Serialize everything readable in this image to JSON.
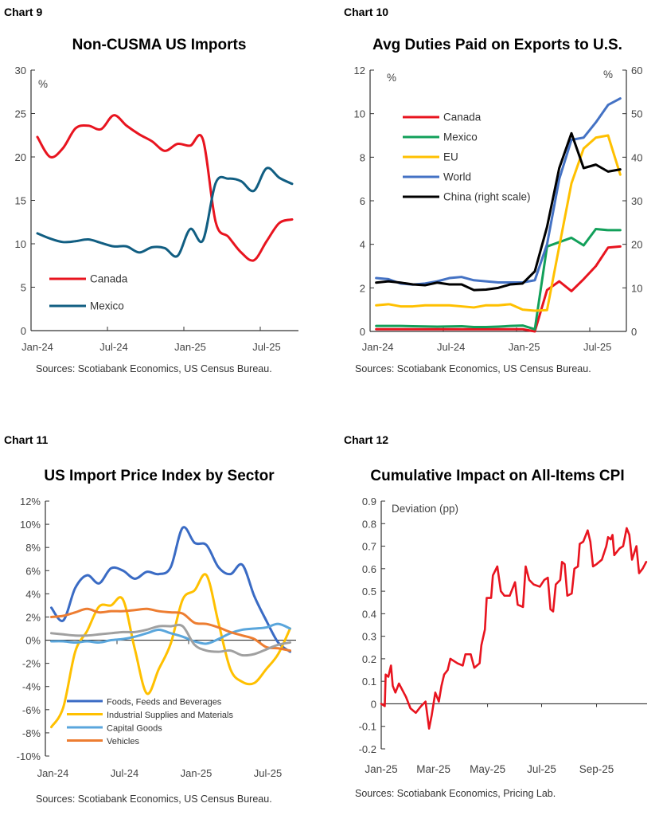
{
  "chart_data": [
    {
      "label": "Chart 9",
      "type": "line",
      "title": "Non-CUSMA US Imports",
      "unit_label": "%",
      "source": "Sources: Scotiabank Economics, US Census Bureau.",
      "x": [
        "Jan-24",
        "Feb-24",
        "Mar-24",
        "Apr-24",
        "May-24",
        "Jun-24",
        "Jul-24",
        "Aug-24",
        "Sep-24",
        "Oct-24",
        "Nov-24",
        "Dec-24",
        "Jan-25",
        "Feb-25",
        "Mar-25",
        "Apr-25",
        "May-25",
        "Jun-25",
        "Jul-25",
        "Aug-25",
        "Sep-25"
      ],
      "xticks": [
        "Jan-24",
        "Jul-24",
        "Jan-25",
        "Jul-25"
      ],
      "ylim": [
        0,
        30
      ],
      "yticks": [
        0,
        5,
        10,
        15,
        20,
        25,
        30
      ],
      "grid": false,
      "legend": "bottom-left",
      "series": [
        {
          "name": "Canada",
          "color": "#e8141f",
          "values": [
            22.3,
            20.0,
            21.0,
            23.3,
            23.6,
            23.2,
            24.8,
            23.6,
            22.6,
            21.8,
            20.7,
            21.5,
            21.3,
            22.0,
            12.5,
            10.8,
            9.0,
            8.1,
            10.3,
            12.4,
            12.8
          ]
        },
        {
          "name": "Mexico",
          "color": "#115e82",
          "values": [
            11.2,
            10.6,
            10.2,
            10.3,
            10.5,
            10.1,
            9.7,
            9.7,
            9.0,
            9.6,
            9.5,
            8.6,
            11.7,
            10.4,
            17.0,
            17.5,
            17.2,
            16.1,
            18.7,
            17.6,
            16.9
          ]
        }
      ]
    },
    {
      "label": "Chart 10",
      "type": "line",
      "title": "Avg Duties Paid on Exports to U.S.",
      "unit_label": "%",
      "unit_label_right": "%",
      "source": "Sources: Scotiabank Economics, US Census Bureau.",
      "x": [
        "Jan-24",
        "Feb-24",
        "Mar-24",
        "Apr-24",
        "May-24",
        "Jun-24",
        "Jul-24",
        "Aug-24",
        "Sep-24",
        "Oct-24",
        "Nov-24",
        "Dec-24",
        "Jan-25",
        "Feb-25",
        "Mar-25",
        "Apr-25",
        "May-25",
        "Jun-25",
        "Jul-25",
        "Aug-25",
        "Sep-25"
      ],
      "xticks": [
        "Jan-24",
        "Jul-24",
        "Jan-25",
        "Jul-25"
      ],
      "ylim": [
        0,
        12
      ],
      "yticks": [
        0,
        2,
        4,
        6,
        8,
        10,
        12
      ],
      "ylim_right": [
        0,
        60
      ],
      "yticks_right": [
        0,
        10,
        20,
        30,
        40,
        50,
        60
      ],
      "grid": false,
      "legend": "top-left",
      "series": [
        {
          "name": "Canada",
          "color": "#e8141f",
          "axis": "left",
          "values": [
            0.1,
            0.1,
            0.1,
            0.1,
            0.1,
            0.1,
            0.1,
            0.1,
            0.1,
            0.1,
            0.1,
            0.1,
            0.1,
            0.0,
            1.9,
            2.3,
            1.85,
            2.4,
            3.0,
            3.85,
            3.9
          ]
        },
        {
          "name": "Mexico",
          "color": "#12a05a",
          "axis": "left",
          "values": [
            0.25,
            0.25,
            0.25,
            0.24,
            0.23,
            0.22,
            0.23,
            0.24,
            0.2,
            0.2,
            0.22,
            0.25,
            0.27,
            0.1,
            3.9,
            4.1,
            4.3,
            3.95,
            4.7,
            4.65,
            4.65
          ]
        },
        {
          "name": "EU",
          "color": "#ffc000",
          "axis": "left",
          "values": [
            1.2,
            1.25,
            1.15,
            1.15,
            1.2,
            1.2,
            1.2,
            1.15,
            1.1,
            1.2,
            1.2,
            1.25,
            1.0,
            0.95,
            0.98,
            3.9,
            6.8,
            8.4,
            8.9,
            9.0,
            7.2
          ]
        },
        {
          "name": "World",
          "color": "#4472c4",
          "axis": "left",
          "values": [
            2.45,
            2.4,
            2.2,
            2.15,
            2.2,
            2.3,
            2.45,
            2.5,
            2.35,
            2.3,
            2.25,
            2.25,
            2.25,
            2.35,
            4.0,
            7.0,
            8.8,
            8.9,
            9.6,
            10.4,
            10.7
          ]
        },
        {
          "name": "China (right scale)",
          "color": "#000000",
          "axis": "right",
          "values": [
            11.2,
            11.5,
            11.2,
            10.8,
            10.6,
            11.2,
            10.8,
            10.8,
            9.5,
            9.6,
            10.0,
            10.8,
            11.0,
            13.8,
            24.0,
            37.5,
            45.5,
            37.5,
            38.3,
            36.7,
            37.2
          ]
        }
      ]
    },
    {
      "label": "Chart 11",
      "type": "line",
      "title": "US Import Price Index by Sector",
      "source": "Sources: Scotiabank Economics, US Census Bureau.",
      "x": [
        "Jan-24",
        "Feb-24",
        "Mar-24",
        "Apr-24",
        "May-24",
        "Jun-24",
        "Jul-24",
        "Aug-24",
        "Sep-24",
        "Oct-24",
        "Nov-24",
        "Dec-24",
        "Jan-25",
        "Feb-25",
        "Mar-25",
        "Apr-25",
        "May-25",
        "Jun-25",
        "Jul-25",
        "Aug-25",
        "Sep-25"
      ],
      "xticks": [
        "Jan-24",
        "Jul-24",
        "Jan-25",
        "Jul-25"
      ],
      "ylim": [
        -10,
        12
      ],
      "yticks": [
        "-10%",
        "-8%",
        "-6%",
        "-4%",
        "-2%",
        "0%",
        "2%",
        "4%",
        "6%",
        "8%",
        "10%",
        "12%"
      ],
      "grid": false,
      "legend": "bottom",
      "series": [
        {
          "name": "Foods, Feeds and Beverages",
          "color": "#3a6bc4",
          "values": [
            2.8,
            1.7,
            4.5,
            5.6,
            4.9,
            6.2,
            6.0,
            5.3,
            5.9,
            5.7,
            6.3,
            9.7,
            8.4,
            8.2,
            6.3,
            5.7,
            6.5,
            3.8,
            1.7,
            -0.2,
            -1.0
          ]
        },
        {
          "name": "Industrial Supplies and Materials",
          "color": "#ffc000",
          "values": [
            -7.5,
            -5.8,
            -1.0,
            0.8,
            2.9,
            3.0,
            3.5,
            -0.8,
            -4.6,
            -2.5,
            -0.3,
            3.5,
            4.3,
            5.6,
            1.5,
            -2.5,
            -3.6,
            -3.7,
            -2.5,
            -1.2,
            1.0
          ]
        },
        {
          "name": "Capital Goods",
          "color": "#5aa6dc",
          "values": [
            -0.1,
            -0.1,
            -0.2,
            -0.1,
            -0.2,
            0.0,
            0.1,
            0.3,
            0.6,
            0.9,
            0.6,
            0.3,
            -0.1,
            -0.3,
            0.1,
            0.6,
            0.9,
            1.0,
            1.1,
            1.4,
            1.0
          ]
        },
        {
          "name": "Vehicles",
          "color": "#ed7d31",
          "values": [
            2.0,
            2.1,
            2.4,
            2.7,
            2.4,
            2.5,
            2.5,
            2.6,
            2.7,
            2.5,
            2.4,
            2.3,
            1.5,
            1.4,
            1.1,
            0.7,
            0.4,
            0.1,
            -0.6,
            -0.7,
            -0.9
          ]
        },
        {
          "color": "#a0a0a0",
          "values": [
            0.6,
            0.5,
            0.4,
            0.4,
            0.5,
            0.6,
            0.7,
            0.7,
            0.9,
            1.2,
            1.2,
            1.2,
            -0.4,
            -0.9,
            -1.0,
            -0.9,
            -1.3,
            -1.2,
            -0.8,
            -0.4,
            -0.2
          ]
        }
      ]
    },
    {
      "label": "Chart 12",
      "type": "line",
      "title": "Cumulative Impact on All-Items CPI",
      "unit_label": "Deviation (pp)",
      "source": "Sources: Scotiabank Economics, Pricing Lab.",
      "xticks": [
        "Jan-25",
        "Mar-25",
        "May-25",
        "Jul-25",
        "Sep-25"
      ],
      "xtick_dates": [
        "2025-01-01",
        "2025-03-01",
        "2025-05-01",
        "2025-07-01",
        "2025-09-01"
      ],
      "xlim": [
        "2025-01-01",
        "2025-10-28"
      ],
      "ylim": [
        -0.2,
        0.9
      ],
      "yticks": [
        "-0.2",
        "-0.1",
        "0",
        "0.1",
        "0.2",
        "0.3",
        "0.4",
        "0.5",
        "0.6",
        "0.7",
        "0.8",
        "0.9"
      ],
      "grid": false,
      "series": [
        {
          "color": "#e8141f",
          "points": [
            [
              "2025-01-01",
              0.0
            ],
            [
              "2025-01-05",
              -0.01
            ],
            [
              "2025-01-06",
              0.13
            ],
            [
              "2025-01-09",
              0.12
            ],
            [
              "2025-01-12",
              0.17
            ],
            [
              "2025-01-14",
              0.08
            ],
            [
              "2025-01-17",
              0.05
            ],
            [
              "2025-01-21",
              0.09
            ],
            [
              "2025-01-25",
              0.06
            ],
            [
              "2025-01-29",
              0.03
            ],
            [
              "2025-02-03",
              -0.02
            ],
            [
              "2025-02-09",
              -0.04
            ],
            [
              "2025-02-15",
              -0.01
            ],
            [
              "2025-02-20",
              0.01
            ],
            [
              "2025-02-24",
              -0.11
            ],
            [
              "2025-02-27",
              -0.05
            ],
            [
              "2025-03-03",
              0.05
            ],
            [
              "2025-03-07",
              0.01
            ],
            [
              "2025-03-10",
              0.08
            ],
            [
              "2025-03-13",
              0.13
            ],
            [
              "2025-03-17",
              0.15
            ],
            [
              "2025-03-20",
              0.2
            ],
            [
              "2025-03-28",
              0.18
            ],
            [
              "2025-04-03",
              0.17
            ],
            [
              "2025-04-06",
              0.22
            ],
            [
              "2025-04-12",
              0.22
            ],
            [
              "2025-04-16",
              0.16
            ],
            [
              "2025-04-22",
              0.18
            ],
            [
              "2025-04-24",
              0.26
            ],
            [
              "2025-04-28",
              0.33
            ],
            [
              "2025-04-30",
              0.47
            ],
            [
              "2025-05-05",
              0.47
            ],
            [
              "2025-05-07",
              0.57
            ],
            [
              "2025-05-12",
              0.61
            ],
            [
              "2025-05-16",
              0.5
            ],
            [
              "2025-05-20",
              0.48
            ],
            [
              "2025-05-26",
              0.48
            ],
            [
              "2025-06-01",
              0.54
            ],
            [
              "2025-06-04",
              0.44
            ],
            [
              "2025-06-10",
              0.43
            ],
            [
              "2025-06-13",
              0.61
            ],
            [
              "2025-06-17",
              0.55
            ],
            [
              "2025-06-22",
              0.53
            ],
            [
              "2025-06-29",
              0.52
            ],
            [
              "2025-07-04",
              0.55
            ],
            [
              "2025-07-08",
              0.56
            ],
            [
              "2025-07-11",
              0.42
            ],
            [
              "2025-07-14",
              0.41
            ],
            [
              "2025-07-17",
              0.53
            ],
            [
              "2025-07-22",
              0.55
            ],
            [
              "2025-07-24",
              0.63
            ],
            [
              "2025-07-27",
              0.62
            ],
            [
              "2025-07-30",
              0.48
            ],
            [
              "2025-08-04",
              0.49
            ],
            [
              "2025-08-07",
              0.6
            ],
            [
              "2025-08-11",
              0.61
            ],
            [
              "2025-08-13",
              0.71
            ],
            [
              "2025-08-17",
              0.72
            ],
            [
              "2025-08-22",
              0.77
            ],
            [
              "2025-08-25",
              0.72
            ],
            [
              "2025-08-28",
              0.61
            ],
            [
              "2025-09-01",
              0.62
            ],
            [
              "2025-09-07",
              0.64
            ],
            [
              "2025-09-12",
              0.7
            ],
            [
              "2025-09-14",
              0.74
            ],
            [
              "2025-09-17",
              0.73
            ],
            [
              "2025-09-19",
              0.75
            ],
            [
              "2025-09-21",
              0.66
            ],
            [
              "2025-09-27",
              0.69
            ],
            [
              "2025-10-01",
              0.7
            ],
            [
              "2025-10-05",
              0.78
            ],
            [
              "2025-10-08",
              0.75
            ],
            [
              "2025-10-11",
              0.64
            ],
            [
              "2025-10-16",
              0.7
            ],
            [
              "2025-10-19",
              0.58
            ],
            [
              "2025-10-23",
              0.6
            ],
            [
              "2025-10-27",
              0.63
            ]
          ]
        }
      ]
    }
  ]
}
